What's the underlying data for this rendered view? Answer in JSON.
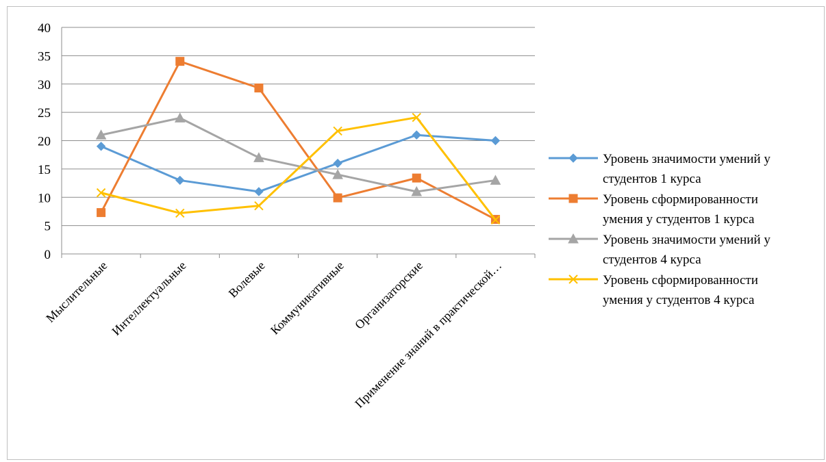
{
  "chart_data": {
    "type": "line",
    "title": "",
    "xlabel": "",
    "ylabel": "",
    "categories": [
      "Мыслительные",
      "Интеллектуальные",
      "Волевые",
      "Коммуникативные",
      "Организаторские",
      "Применение знаний в практической…"
    ],
    "ylim": [
      0,
      40
    ],
    "yticks": [
      0,
      5,
      10,
      15,
      20,
      25,
      30,
      35,
      40
    ],
    "grid": true,
    "legend_position": "right",
    "series": [
      {
        "name_lines": [
          "Уровень значимости умений у",
          "студентов 1 курса"
        ],
        "color": "#5b9bd5",
        "marker": "diamond",
        "values": [
          19,
          13,
          11,
          16,
          21,
          20
        ]
      },
      {
        "name_lines": [
          "Уровень сформированности",
          "умения у студентов 1 курса"
        ],
        "color": "#ed7d31",
        "marker": "square",
        "values": [
          7.3,
          34,
          29.3,
          9.9,
          13.4,
          6.1
        ]
      },
      {
        "name_lines": [
          "Уровень значимости умений у",
          "студентов 4 курса"
        ],
        "color": "#a5a5a5",
        "marker": "triangle",
        "values": [
          21,
          24,
          17,
          14,
          11,
          13
        ]
      },
      {
        "name_lines": [
          "Уровень сформированности",
          "умения у студентов 4 курса"
        ],
        "color": "#ffc000",
        "marker": "x",
        "values": [
          10.8,
          7.2,
          8.5,
          21.7,
          24.1,
          6
        ]
      }
    ]
  }
}
